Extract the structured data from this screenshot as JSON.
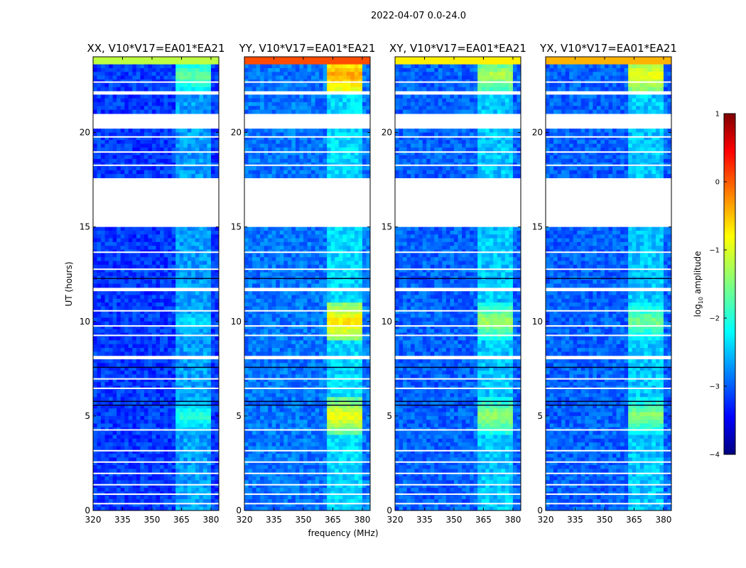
{
  "chart_data": {
    "type": "heatmap",
    "suptitle": "2022-04-07 0.0-24.0",
    "xlabel": "frequency (MHz)",
    "ylabel": "UT (hours)",
    "xticks": [
      "320",
      "335",
      "350",
      "365",
      "380"
    ],
    "xlim": [
      320,
      384
    ],
    "yticks": [
      "0",
      "5",
      "10",
      "15",
      "20"
    ],
    "ylim": [
      0,
      24
    ],
    "panels": [
      {
        "title": "XX, V10*V17=EA01*EA21",
        "background_level": -3.1,
        "rfi_band_mhz": [
          362,
          380
        ],
        "rfi_peaks": [
          {
            "ut": 23.0,
            "level": -1.6
          },
          {
            "ut": 10.0,
            "level": -2.2
          },
          {
            "ut": 5.0,
            "level": -1.9
          }
        ]
      },
      {
        "title": "YY, V10*V17=EA01*EA21",
        "background_level": -2.8,
        "rfi_band_mhz": [
          362,
          380
        ],
        "rfi_peaks": [
          {
            "ut": 23.0,
            "level": -0.4
          },
          {
            "ut": 10.0,
            "level": -0.7
          },
          {
            "ut": 5.0,
            "level": -0.9
          }
        ]
      },
      {
        "title": "XY, V10*V17=EA01*EA21",
        "background_level": -2.9,
        "rfi_band_mhz": [
          362,
          380
        ],
        "rfi_peaks": [
          {
            "ut": 23.0,
            "level": -1.2
          },
          {
            "ut": 10.0,
            "level": -1.3
          },
          {
            "ut": 5.0,
            "level": -1.3
          }
        ]
      },
      {
        "title": "YX, V10*V17=EA01*EA21",
        "background_level": -2.9,
        "rfi_band_mhz": [
          362,
          380
        ],
        "rfi_peaks": [
          {
            "ut": 23.0,
            "level": -0.9
          },
          {
            "ut": 10.0,
            "level": -1.5
          },
          {
            "ut": 5.0,
            "level": -1.4
          }
        ]
      }
    ],
    "flagged_ut_ranges": [
      [
        15.1,
        17.5
      ],
      [
        20.3,
        21.0
      ],
      [
        11.6,
        11.8
      ],
      [
        22.0,
        22.1
      ],
      [
        8.1,
        8.2
      ],
      [
        3.7,
        3.8
      ]
    ],
    "colorbar": {
      "label": "log",
      "label_sub": "10",
      "label_rest": " amplitude",
      "ticks": [
        "1",
        "0",
        "−1",
        "−2",
        "−3",
        "−4"
      ],
      "range": [
        -4,
        1
      ],
      "colormap": "jet"
    }
  }
}
